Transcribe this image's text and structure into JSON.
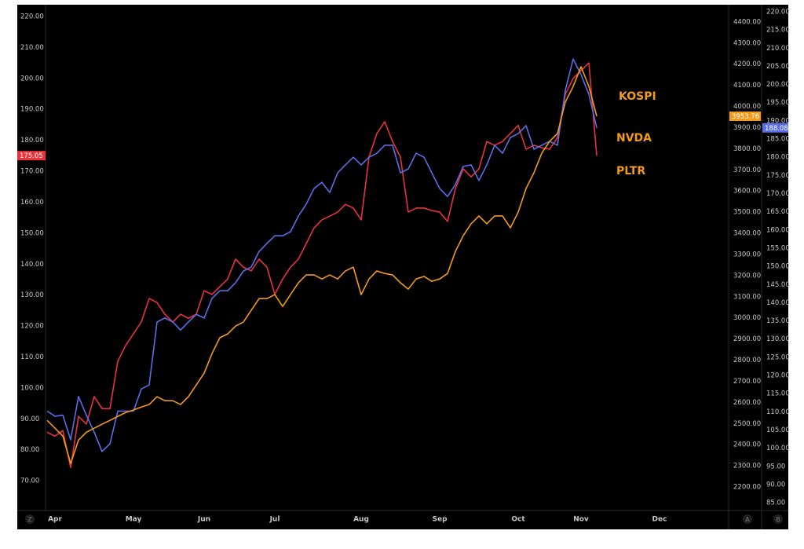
{
  "chart_data": {
    "type": "line",
    "categories": [
      null,
      "Apr",
      null,
      null,
      null,
      null,
      null,
      null,
      null,
      null,
      null,
      "May",
      null,
      null,
      null,
      null,
      null,
      null,
      null,
      null,
      "Jun",
      null,
      null,
      null,
      null,
      null,
      null,
      null,
      null,
      "Jul",
      null,
      null,
      null,
      null,
      null,
      null,
      null,
      null,
      null,
      null,
      "Aug",
      null,
      null,
      null,
      null,
      null,
      null,
      null,
      null,
      null,
      "Sep",
      null,
      null,
      null,
      null,
      null,
      null,
      null,
      null,
      null,
      "Oct",
      null,
      null,
      null,
      null,
      null,
      null,
      null,
      "Nov",
      null,
      null,
      null,
      null,
      null,
      null,
      null,
      null,
      null,
      "Dec",
      null,
      null,
      null,
      null,
      null,
      null,
      null,
      null
    ],
    "series": [
      {
        "name": "PLTR",
        "color": "#e8323c",
        "axis": "y",
        "values": [
          85.7,
          84.4,
          86.2,
          74.3,
          90.8,
          88.3,
          97.2,
          93.3,
          93.3,
          108.6,
          113.7,
          117.5,
          121.3,
          128.9,
          127.6,
          123.8,
          121.3,
          123.8,
          122.5,
          123.8,
          131.4,
          130.2,
          132.7,
          135.2,
          141.6,
          139.0,
          137.8,
          141.6,
          139.0,
          130.2,
          135.2,
          139.0,
          141.6,
          146.6,
          151.7,
          154.3,
          155.5,
          156.8,
          159.3,
          158.1,
          154.3,
          174.6,
          182.2,
          186.0,
          179.6,
          174.6,
          156.8,
          158.1,
          158.1,
          157.3,
          156.8,
          153.8,
          164.4,
          170.8,
          168.2,
          170.8,
          179.6,
          178.4,
          179.6,
          182.2,
          184.8,
          177.1,
          178.4,
          177.6,
          177.1,
          180.9,
          194.9,
          200.0,
          202.5,
          205.0,
          175.05,
          null,
          null,
          null,
          null,
          null,
          null,
          null,
          null,
          null,
          null,
          null,
          null,
          null,
          null,
          null,
          null
        ]
      },
      {
        "name": "NVDA",
        "color": "#5b6ee8",
        "axis": "y3",
        "values": [
          110.2,
          108.8,
          109.1,
          102.3,
          114.2,
          109.1,
          104.4,
          99.1,
          101.2,
          110.2,
          110.2,
          110.2,
          116.3,
          117.4,
          134.7,
          135.8,
          134.7,
          132.5,
          134.7,
          136.8,
          135.8,
          141.2,
          143.3,
          143.3,
          145.5,
          148.7,
          149.8,
          154.1,
          156.3,
          158.4,
          158.4,
          159.5,
          163.8,
          167.1,
          171.4,
          173.1,
          170.3,
          175.7,
          177.9,
          180.0,
          177.9,
          180.0,
          181.1,
          183.3,
          183.3,
          175.7,
          176.8,
          181.1,
          180.0,
          175.7,
          171.4,
          169.2,
          172.5,
          177.5,
          177.9,
          173.6,
          177.9,
          183.3,
          181.1,
          185.4,
          186.5,
          188.7,
          182.2,
          183.3,
          184.4,
          183.3,
          198.4,
          207.0,
          202.7,
          197.3,
          188.08,
          null,
          null,
          null,
          null,
          null,
          null,
          null,
          null,
          null,
          null,
          null,
          null,
          null,
          null,
          null,
          null
        ]
      },
      {
        "name": "KOSPI",
        "color": "#f29a1a",
        "axis": "y2",
        "values": [
          2515,
          2478,
          2441,
          2311,
          2422,
          2459,
          2478,
          2497,
          2515,
          2534,
          2552,
          2564,
          2578,
          2590,
          2627,
          2608,
          2608,
          2590,
          2627,
          2683,
          2738,
          2831,
          2906,
          2924,
          2961,
          2980,
          3036,
          3091,
          3091,
          3110,
          3054,
          3110,
          3166,
          3203,
          3203,
          3184,
          3203,
          3184,
          3222,
          3240,
          3110,
          3184,
          3222,
          3210,
          3203,
          3166,
          3136,
          3184,
          3196,
          3173,
          3184,
          3210,
          3314,
          3389,
          3445,
          3482,
          3445,
          3482,
          3482,
          3426,
          3500,
          3612,
          3686,
          3779,
          3835,
          3872,
          4021,
          4095,
          4188,
          4095,
          3953.76,
          null,
          null,
          null,
          null,
          null,
          null,
          null,
          null,
          null,
          null,
          null,
          null,
          null,
          null,
          null,
          null
        ]
      }
    ],
    "ylim": [
      60.9,
      223.3
    ],
    "yticks": [
      {
        "value": 70,
        "label": "70.00"
      },
      {
        "value": 80,
        "label": "80.00"
      },
      {
        "value": 90,
        "label": "90.00"
      },
      {
        "value": 100,
        "label": "100.00"
      },
      {
        "value": 110,
        "label": "110.00"
      },
      {
        "value": 120,
        "label": "120.00"
      },
      {
        "value": 130,
        "label": "130.00"
      },
      {
        "value": 140,
        "label": "140.00"
      },
      {
        "value": 150,
        "label": "150.00"
      },
      {
        "value": 160,
        "label": "160.00"
      },
      {
        "value": 170,
        "label": "170.00"
      },
      {
        "value": 180,
        "label": "180.00"
      },
      {
        "value": 190,
        "label": "190.00"
      },
      {
        "value": 200,
        "label": "200.00"
      },
      {
        "value": 210,
        "label": "210.00"
      },
      {
        "value": 220,
        "label": "220.00"
      }
    ],
    "y2lim": [
      2096,
      4474
    ],
    "y2ticks": [
      {
        "value": 2200,
        "label": "2200.00"
      },
      {
        "value": 2300,
        "label": "2300.00"
      },
      {
        "value": 2400,
        "label": "2400.00"
      },
      {
        "value": 2500,
        "label": "2500.00"
      },
      {
        "value": 2600,
        "label": "2600.00"
      },
      {
        "value": 2700,
        "label": "2700.00"
      },
      {
        "value": 2800,
        "label": "2800.00"
      },
      {
        "value": 2900,
        "label": "2900.00"
      },
      {
        "value": 3000,
        "label": "3000.00"
      },
      {
        "value": 3100,
        "label": "3100.00"
      },
      {
        "value": 3200,
        "label": "3200.00"
      },
      {
        "value": 3300,
        "label": "3300.00"
      },
      {
        "value": 3400,
        "label": "3400.00"
      },
      {
        "value": 3500,
        "label": "3500.00"
      },
      {
        "value": 3600,
        "label": "3600.00"
      },
      {
        "value": 3700,
        "label": "3700.00"
      },
      {
        "value": 3800,
        "label": "3800.00"
      },
      {
        "value": 3900,
        "label": "3900.00"
      },
      {
        "value": 4000,
        "label": "4000.00"
      },
      {
        "value": 4100,
        "label": "4100.00"
      },
      {
        "value": 4200,
        "label": "4200.00"
      },
      {
        "value": 4300,
        "label": "4300.00"
      },
      {
        "value": 4400,
        "label": "4400.00"
      }
    ],
    "y3lim": [
      83.3,
      221.5
    ],
    "y3ticks": [
      {
        "value": 85,
        "label": "85.00"
      },
      {
        "value": 90,
        "label": "90.00"
      },
      {
        "value": 95,
        "label": "95.00"
      },
      {
        "value": 100,
        "label": "100.00"
      },
      {
        "value": 105,
        "label": "105.00"
      },
      {
        "value": 110,
        "label": "110.00"
      },
      {
        "value": 115,
        "label": "115.00"
      },
      {
        "value": 120,
        "label": "120.00"
      },
      {
        "value": 125,
        "label": "125.00"
      },
      {
        "value": 130,
        "label": "130.00"
      },
      {
        "value": 135,
        "label": "135.00"
      },
      {
        "value": 140,
        "label": "140.00"
      },
      {
        "value": 145,
        "label": "145.00"
      },
      {
        "value": 150,
        "label": "150.00"
      },
      {
        "value": 155,
        "label": "155.00"
      },
      {
        "value": 160,
        "label": "160.00"
      },
      {
        "value": 165,
        "label": "165.00"
      },
      {
        "value": 170,
        "label": "170.00"
      },
      {
        "value": 175,
        "label": "175.00"
      },
      {
        "value": 180,
        "label": "180.00"
      },
      {
        "value": 185,
        "label": "185.00"
      },
      {
        "value": 190,
        "label": "190.00"
      },
      {
        "value": 195,
        "label": "195.00"
      },
      {
        "value": 200,
        "label": "200.00"
      },
      {
        "value": 205,
        "label": "205.00"
      },
      {
        "value": 210,
        "label": "210.00"
      },
      {
        "value": 215,
        "label": "215.00"
      },
      {
        "value": 220,
        "label": "220.00"
      }
    ],
    "grid": false,
    "annotation_color": "#f29a1a"
  },
  "controls": [
    "Z",
    "A",
    "B"
  ]
}
